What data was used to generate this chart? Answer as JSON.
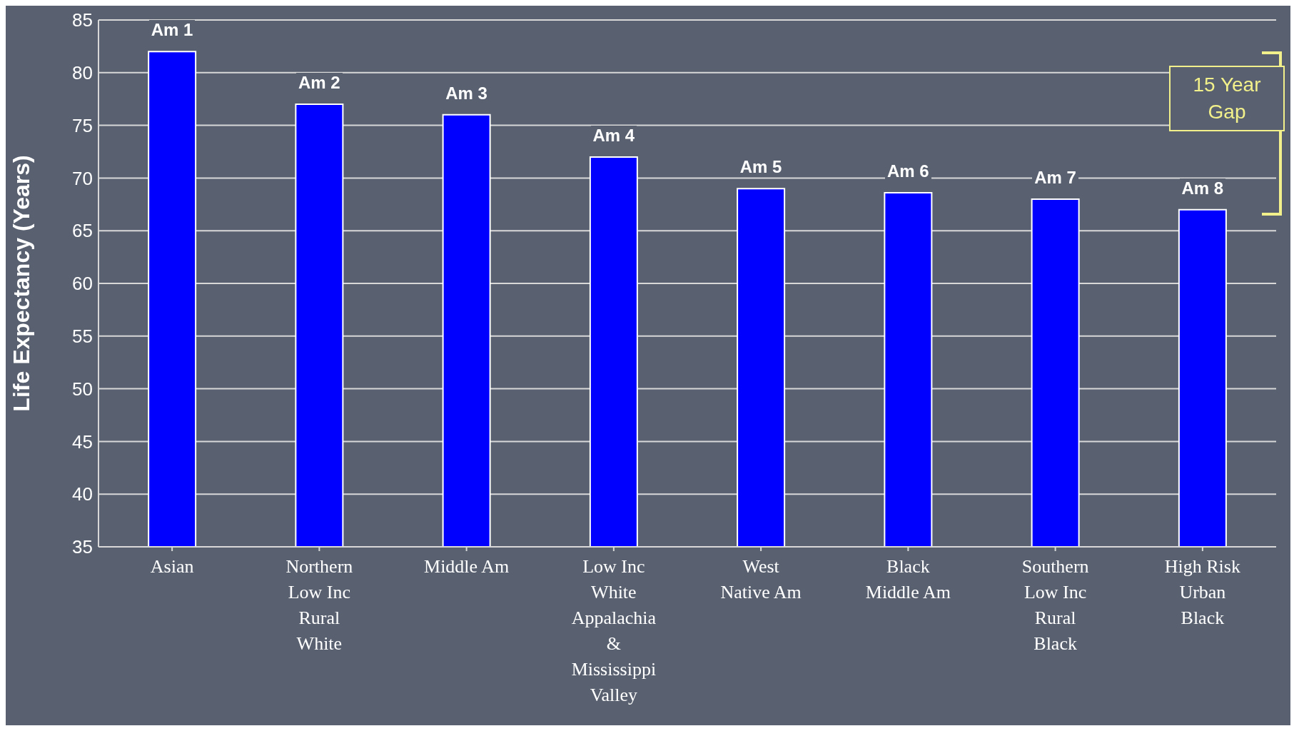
{
  "chart_data": {
    "type": "bar",
    "ylabel": "Life Expectancy (Years)",
    "categories": [
      "Asian",
      "Northern Low Inc Rural White",
      "Middle Am",
      "Low Inc White Appalachia & Mississippi Valley",
      "West Native Am",
      "Black Middle Am",
      "Southern Low Inc Rural Black",
      "High Risk Urban Black"
    ],
    "values": [
      82,
      77,
      76,
      72,
      69,
      68.6,
      68,
      67
    ],
    "color": "#0000ff",
    "ylim": [
      35,
      85
    ],
    "yticks": [
      35,
      40,
      45,
      50,
      55,
      60,
      65,
      70,
      75,
      80,
      85
    ],
    "grid": "y",
    "annotations": [
      {
        "text": "Am 1",
        "x": "Asian",
        "y": 82
      },
      {
        "text": "Am 2",
        "x": "Northern Low Inc Rural White",
        "y": 77
      },
      {
        "text": "Am 3",
        "x": "Middle Am",
        "y": 76
      },
      {
        "text": "Am 4",
        "x": "Low Inc White Appalachia & Mississippi Valley",
        "y": 72
      },
      {
        "text": "Am 5",
        "x": "West Native Am",
        "y": 69
      },
      {
        "text": "Am 6",
        "x": "Black Middle Am",
        "y": 68.6
      },
      {
        "text": "Am 7",
        "x": "Southern Low Inc Rural Black",
        "y": 68
      },
      {
        "text": "Am 8",
        "x": "High Risk Urban Black",
        "y": 67
      },
      "15 Year Gap"
    ]
  }
}
